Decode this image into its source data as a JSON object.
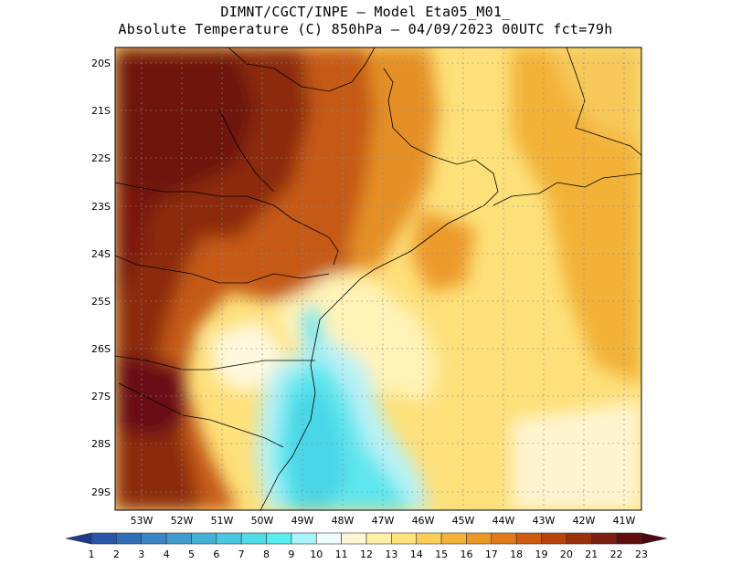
{
  "title_line1": "DIMNT/CGCT/INPE – Model Eta05_M01_",
  "title_line2": "Absolute Temperature (C) 850hPa – 04/09/2023 00UTC fct=79h",
  "lat_labels": [
    "20S",
    "21S",
    "22S",
    "23S",
    "24S",
    "25S",
    "26S",
    "27S",
    "28S",
    "29S"
  ],
  "lon_labels": [
    "53W",
    "52W",
    "51W",
    "50W",
    "49W",
    "48W",
    "47W",
    "46W",
    "45W",
    "44W",
    "43W",
    "42W",
    "41W"
  ],
  "colorbar": {
    "labels": [
      "1",
      "2",
      "3",
      "4",
      "5",
      "6",
      "7",
      "8",
      "9",
      "10",
      "11",
      "12",
      "13",
      "14",
      "15",
      "16",
      "17",
      "18",
      "19",
      "20",
      "21",
      "22",
      "23"
    ],
    "colors": [
      "#1f3a8f",
      "#2a55a8",
      "#2f6fb8",
      "#3a86c4",
      "#3f9ccd",
      "#44b2d6",
      "#4ac8df",
      "#4fdde8",
      "#55efef",
      "#a8f4f8",
      "#eefcfd",
      "#fff6d6",
      "#fff0a8",
      "#ffe37a",
      "#fbcf55",
      "#f4b23a",
      "#eb9726",
      "#e07a1a",
      "#cf5a10",
      "#b8430c",
      "#9c300c",
      "#7e1e0e",
      "#5e0f10",
      "#4a0810"
    ]
  },
  "legend_scale": {
    "min": 1,
    "max": 23
  }
}
